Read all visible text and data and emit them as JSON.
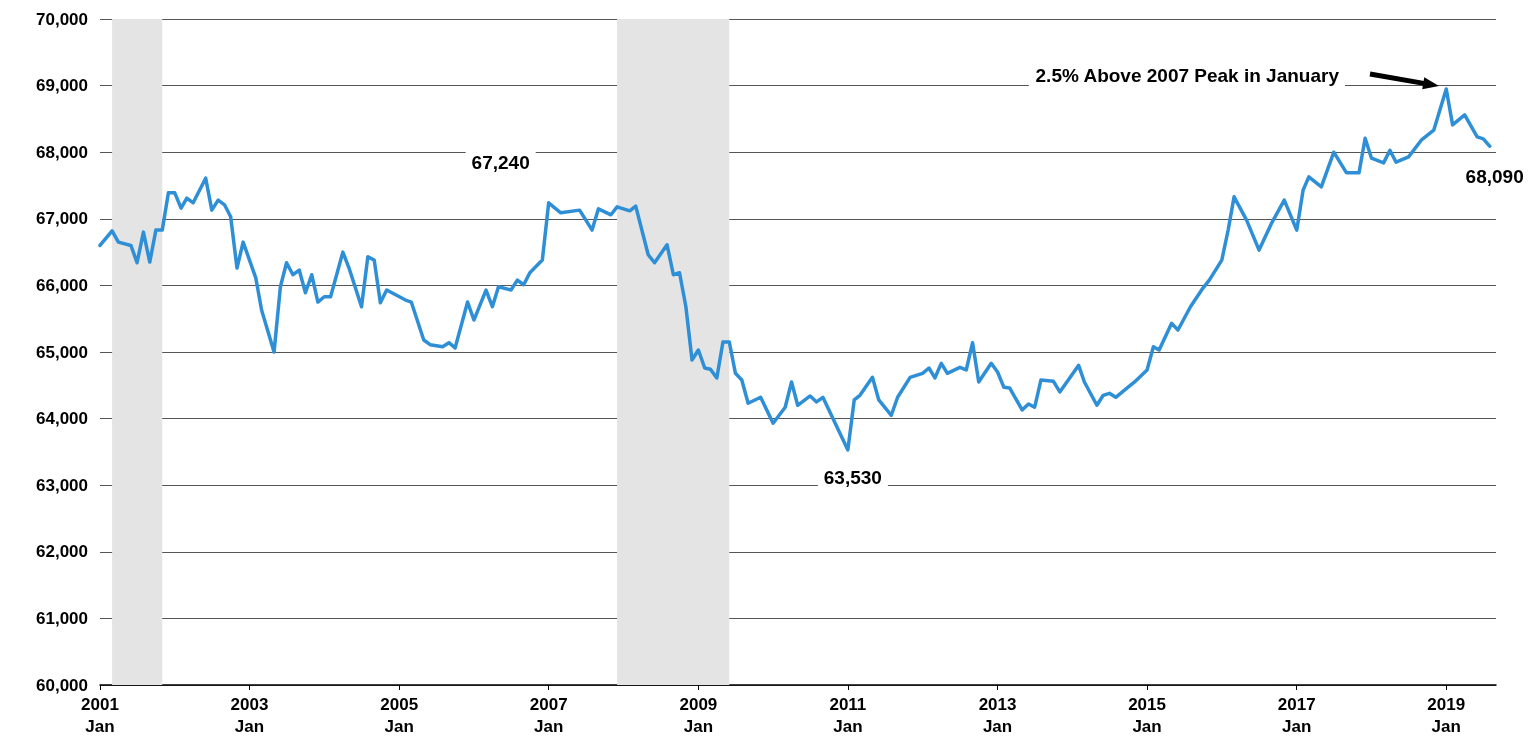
{
  "chart_data": {
    "type": "line",
    "color": "#2e8fd6",
    "x": [
      "2001-01",
      "2001-03",
      "2001-04",
      "2001-06",
      "2001-07",
      "2001-08",
      "2001-09",
      "2001-10",
      "2001-11",
      "2001-12",
      "2002-01",
      "2002-02",
      "2002-03",
      "2002-04",
      "2002-06",
      "2002-07",
      "2002-08",
      "2002-09",
      "2002-10",
      "2002-11",
      "2002-12",
      "2003-02",
      "2003-03",
      "2003-05",
      "2003-06",
      "2003-07",
      "2003-08",
      "2003-09",
      "2003-10",
      "2003-11",
      "2003-12",
      "2004-01",
      "2004-02",
      "2004-04",
      "2004-05",
      "2004-07",
      "2004-08",
      "2004-09",
      "2004-10",
      "2004-11",
      "2005-02",
      "2005-03",
      "2005-05",
      "2005-06",
      "2005-08",
      "2005-09",
      "2005-10",
      "2005-12",
      "2006-01",
      "2006-03",
      "2006-04",
      "2006-05",
      "2006-07",
      "2006-08",
      "2006-09",
      "2006-10",
      "2006-12",
      "2007-01",
      "2007-03",
      "2007-06",
      "2007-08",
      "2007-09",
      "2007-11",
      "2007-12",
      "2008-02",
      "2008-03",
      "2008-05",
      "2008-06",
      "2008-08",
      "2008-09",
      "2008-10",
      "2008-11",
      "2008-12",
      "2009-01",
      "2009-02",
      "2009-03",
      "2009-04",
      "2009-05",
      "2009-06",
      "2009-07",
      "2009-08",
      "2009-09",
      "2009-11",
      "2010-01",
      "2010-03",
      "2010-04",
      "2010-05",
      "2010-07",
      "2010-08",
      "2010-09",
      "2011-01",
      "2011-02",
      "2011-03",
      "2011-05",
      "2011-06",
      "2011-08",
      "2011-09",
      "2011-11",
      "2012-01",
      "2012-02",
      "2012-03",
      "2012-04",
      "2012-05",
      "2012-07",
      "2012-08",
      "2012-09",
      "2012-10",
      "2012-12",
      "2013-01",
      "2013-02",
      "2013-03",
      "2013-05",
      "2013-06",
      "2013-07",
      "2013-08",
      "2013-10",
      "2013-11",
      "2014-02",
      "2014-03",
      "2014-05",
      "2014-06",
      "2014-07",
      "2014-08",
      "2014-11",
      "2015-01",
      "2015-02",
      "2015-03",
      "2015-05",
      "2015-06",
      "2015-08",
      "2015-10",
      "2015-11",
      "2016-01",
      "2016-02",
      "2016-03",
      "2016-05",
      "2016-07",
      "2016-09",
      "2016-11",
      "2017-01",
      "2017-02",
      "2017-03",
      "2017-05",
      "2017-07",
      "2017-09",
      "2017-11",
      "2017-12",
      "2018-01",
      "2018-03",
      "2018-04",
      "2018-05",
      "2018-07",
      "2018-09",
      "2018-11",
      "2019-01",
      "2019-02",
      "2019-04",
      "2019-06",
      "2019-07",
      "2019-08"
    ],
    "values": [
      66600,
      66820,
      66650,
      66600,
      66340,
      66800,
      66350,
      66830,
      66830,
      67390,
      67390,
      67160,
      67310,
      67240,
      67610,
      67130,
      67280,
      67210,
      67030,
      66260,
      66650,
      66110,
      65630,
      65000,
      65980,
      66340,
      66160,
      66230,
      65890,
      66160,
      65750,
      65830,
      65830,
      66500,
      66260,
      65680,
      66430,
      66380,
      65740,
      65930,
      65780,
      65750,
      65180,
      65110,
      65080,
      65140,
      65060,
      65750,
      65480,
      65930,
      65680,
      65980,
      65930,
      66080,
      66010,
      66190,
      66380,
      67240,
      67090,
      67130,
      66830,
      67150,
      67060,
      67180,
      67120,
      67190,
      66460,
      66340,
      66610,
      66160,
      66190,
      65680,
      64880,
      65030,
      64760,
      64740,
      64610,
      65150,
      65150,
      64680,
      64580,
      64230,
      64320,
      63930,
      64170,
      64550,
      64200,
      64340,
      64250,
      64320,
      63530,
      64280,
      64350,
      64620,
      64280,
      64050,
      64320,
      64620,
      64680,
      64760,
      64610,
      64830,
      64680,
      64770,
      64730,
      65140,
      64550,
      64830,
      64700,
      64470,
      64460,
      64130,
      64220,
      64170,
      64580,
      64560,
      64400,
      64800,
      64550,
      64200,
      64350,
      64380,
      64320,
      64550,
      64730,
      65080,
      65030,
      65430,
      65330,
      65680,
      65960,
      66080,
      66380,
      66830,
      67330,
      66980,
      66530,
      66940,
      67280,
      66830,
      67430,
      67630,
      67480,
      68000,
      67690,
      67690,
      68210,
      67910,
      67840,
      68030,
      67850,
      67930,
      68180,
      68330,
      68950,
      68410,
      68560,
      68230,
      68200,
      68090
    ],
    "xlim": [
      "2001-01",
      "2019-09"
    ],
    "xticks": [
      {
        "value": "2001-01",
        "label": "2001\nJan"
      },
      {
        "value": "2003-01",
        "label": "2003\nJan"
      },
      {
        "value": "2005-01",
        "label": "2005\nJan"
      },
      {
        "value": "2007-01",
        "label": "2007\nJan"
      },
      {
        "value": "2009-01",
        "label": "2009\nJan"
      },
      {
        "value": "2011-01",
        "label": "2011\nJan"
      },
      {
        "value": "2013-01",
        "label": "2013\nJan"
      },
      {
        "value": "2015-01",
        "label": "2015\nJan"
      },
      {
        "value": "2017-01",
        "label": "2017\nJan"
      },
      {
        "value": "2019-01",
        "label": "2019\nJan"
      }
    ],
    "ylim": [
      60000,
      70000
    ],
    "yticks": [
      {
        "value": 60000,
        "label": "60,000"
      },
      {
        "value": 61000,
        "label": "61,000"
      },
      {
        "value": 62000,
        "label": "62,000"
      },
      {
        "value": 63000,
        "label": "63,000"
      },
      {
        "value": 64000,
        "label": "64,000"
      },
      {
        "value": 65000,
        "label": "65,000"
      },
      {
        "value": 66000,
        "label": "66,000"
      },
      {
        "value": 67000,
        "label": "67,000"
      },
      {
        "value": 68000,
        "label": "68,000"
      },
      {
        "value": 69000,
        "label": "69,000"
      },
      {
        "value": 70000,
        "label": "70,000"
      }
    ],
    "grid": "y",
    "marker": "none",
    "line_style": "solid",
    "bands": [
      {
        "axis": "x",
        "from": "2001-03",
        "to": "2001-11",
        "color": "#e4e4e4"
      },
      {
        "axis": "x",
        "from": "2007-12",
        "to": "2009-06",
        "color": "#e4e4e4"
      }
    ],
    "annotations": [
      {
        "text": "67,240",
        "x": "2007-01",
        "y": 67240
      },
      {
        "text": "63,530",
        "x": "2011-01",
        "y": 63530
      },
      {
        "text": "68,090",
        "x": "2019-08",
        "y": 68090
      },
      "2.5% Above 2007 Peak in January"
    ]
  }
}
